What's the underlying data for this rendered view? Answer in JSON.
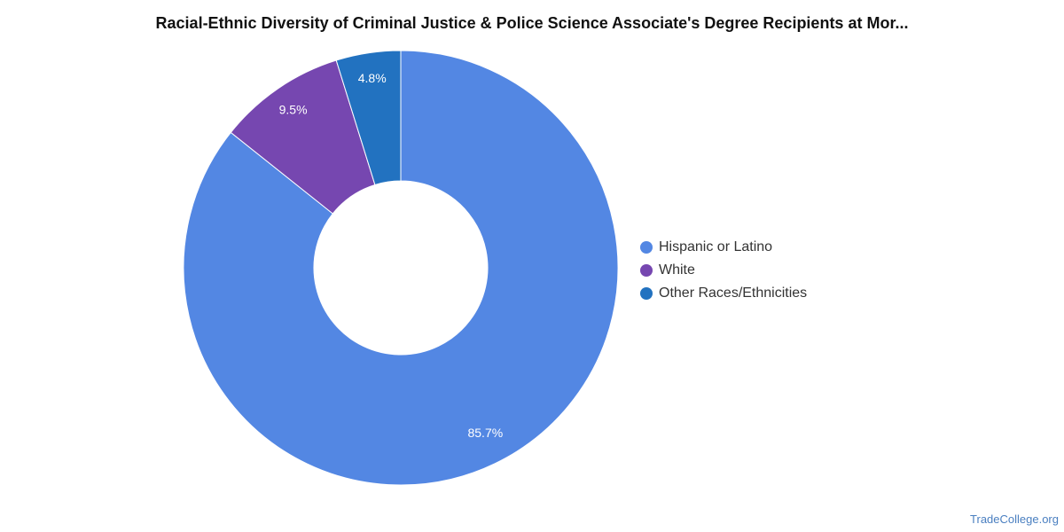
{
  "chart_data": {
    "type": "pie",
    "variant": "donut",
    "title": "Racial-Ethnic Diversity of Criminal Justice & Police Science Associate's Degree Recipients at Mor...",
    "legend_position": "right",
    "series": [
      {
        "name": "Hispanic or Latino",
        "value": 85.7,
        "label": "85.7%",
        "color": "#5387e3"
      },
      {
        "name": "White",
        "value": 9.5,
        "label": "9.5%",
        "color": "#7647b0"
      },
      {
        "name": "Other Races/Ethnicities",
        "value": 4.8,
        "label": "4.8%",
        "color": "#2272c0"
      }
    ]
  },
  "watermark": "TradeCollege.org"
}
